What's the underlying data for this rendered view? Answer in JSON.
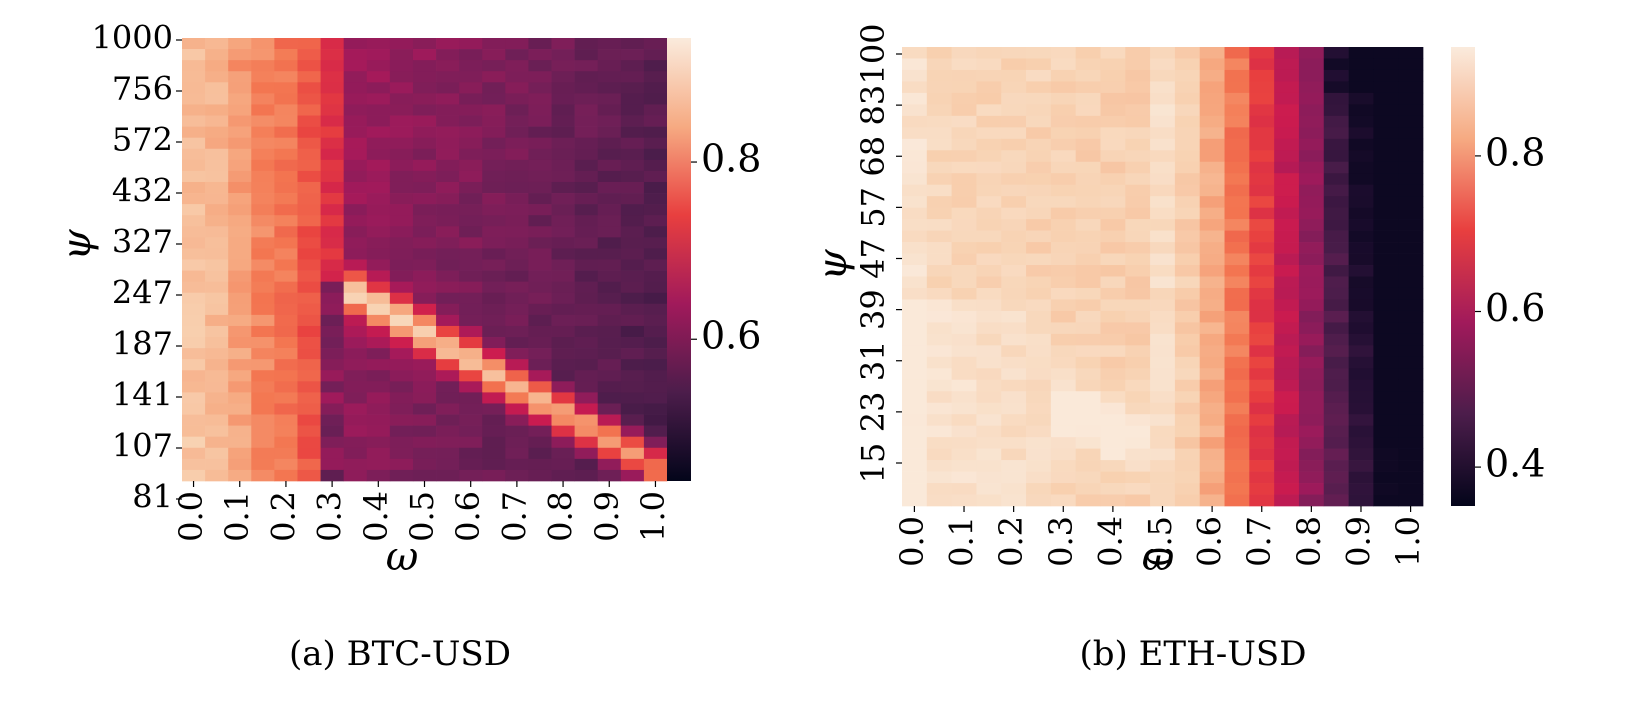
{
  "figure": {
    "panel_a_caption": "(a) BTC-USD",
    "panel_b_caption": "(b) ETH-USD"
  },
  "chart_data": [
    {
      "type": "heatmap",
      "title": "",
      "caption": "(a) BTC-USD",
      "xlabel": "ω",
      "ylabel": "ψ",
      "x_tick_labels": [
        "0.0",
        "0.1",
        "0.2",
        "0.3",
        "0.4",
        "0.5",
        "0.6",
        "0.7",
        "0.8",
        "0.9",
        "1.0"
      ],
      "y_tick_labels": [
        "1000",
        "756",
        "572",
        "432",
        "327",
        "247",
        "187",
        "141",
        "107",
        "81"
      ],
      "n_cols": 21,
      "n_rows": 40,
      "colorbar": {
        "ticks": [
          0.6,
          0.8
        ],
        "tick_labels": [
          "0.6",
          "0.8"
        ],
        "range": [
          0.44,
          0.94
        ]
      },
      "colormap": "rocket",
      "grid": false
    },
    {
      "type": "heatmap",
      "title": "",
      "caption": "(b) ETH-USD",
      "xlabel": "ω",
      "ylabel": "ψ",
      "x_tick_labels": [
        "0.0",
        "0.1",
        "0.2",
        "0.3",
        "0.4",
        "0.5",
        "0.6",
        "0.7",
        "0.8",
        "0.9",
        "1.0"
      ],
      "y_tick_labels": [
        "100",
        "83",
        "68",
        "57",
        "47",
        "39",
        "31",
        "23",
        "15"
      ],
      "n_cols": 21,
      "n_rows": 40,
      "colorbar": {
        "ticks": [
          0.4,
          0.6,
          0.8
        ],
        "tick_labels": [
          "0.4",
          "0.6",
          "0.8"
        ],
        "range": [
          0.35,
          0.94
        ]
      },
      "colormap": "rocket",
      "grid": false
    }
  ]
}
